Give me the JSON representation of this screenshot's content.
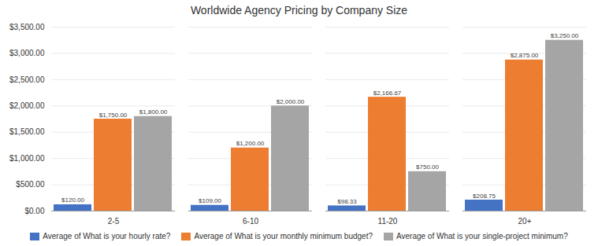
{
  "chart_data": {
    "type": "bar",
    "title": "Worldwide Agency Pricing by Company Size",
    "categories": [
      "2-5",
      "6-10",
      "11-20",
      "20+"
    ],
    "series": [
      {
        "name": "Average of What is your hourly rate?",
        "color": "#4472C4",
        "values": [
          120.0,
          109.0,
          98.33,
          208.75
        ],
        "value_labels": [
          "$120.00",
          "$109.00",
          "$98.33",
          "$208.75"
        ]
      },
      {
        "name": "Average of What is your monthly minimum budget?",
        "color": "#ED7D31",
        "values": [
          1750.0,
          1200.0,
          2166.67,
          2875.0
        ],
        "value_labels": [
          "$1,750.00",
          "$1,200.00",
          "$2,166.67",
          "$2,875.00"
        ]
      },
      {
        "name": "Average of What is your single-project minimum?",
        "color": "#A5A5A5",
        "values": [
          1800.0,
          2000.0,
          750.0,
          3250.0
        ],
        "value_labels": [
          "$1,800.00",
          "$2,000.00",
          "$750.00",
          "$3,250.00"
        ]
      }
    ],
    "ylim": [
      0,
      3500
    ],
    "yticks": [
      {
        "value": 0,
        "label": "$0.00"
      },
      {
        "value": 500,
        "label": "$500.00"
      },
      {
        "value": 1000,
        "label": "$1,000.00"
      },
      {
        "value": 1500,
        "label": "$1,500.00"
      },
      {
        "value": 2000,
        "label": "$2,000.00"
      },
      {
        "value": 2500,
        "label": "$2,500.00"
      },
      {
        "value": 3000,
        "label": "$3,000.00"
      },
      {
        "value": 3500,
        "label": "$3,500.00"
      }
    ],
    "grid": true,
    "legend": "bottom",
    "data_labels": true
  }
}
